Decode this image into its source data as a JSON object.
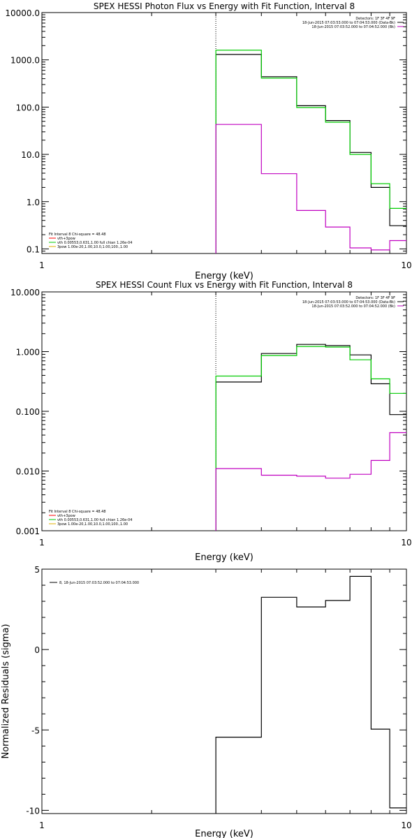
{
  "chart_data": [
    {
      "type": "line",
      "subtype": "step",
      "title": "SPEX HESSI Photon Flux vs Energy with Fit Function, Interval 8",
      "xlabel": "Energy (keV)",
      "ylabel": "",
      "xscale": "log",
      "yscale": "log",
      "xlim": [
        1,
        10
      ],
      "ylim": [
        0.08,
        10000
      ],
      "x_ticks": [
        {
          "value": 1,
          "label": "1"
        },
        {
          "value": 10,
          "label": "10"
        }
      ],
      "y_ticks": [
        {
          "value": 10000,
          "label": "10000.0"
        },
        {
          "value": 1000,
          "label": "1000.0"
        },
        {
          "value": 100,
          "label": "100.0"
        },
        {
          "value": 10,
          "label": "10.0"
        },
        {
          "value": 1,
          "label": "1.0"
        },
        {
          "value": 0.1,
          "label": "0.1"
        }
      ],
      "vline_x": 3.0,
      "legend_top_right": [
        {
          "text": "Detectors: 1F 3F 4F 9F",
          "color": null
        },
        {
          "text": "18-Jun-2015 07:03:53.000 to 07:04:53.000 (Data-Bk)",
          "color": "#000000"
        },
        {
          "text": "18-Jun-2015 07:03:52.000 to 07:04:52.000 (Bk)",
          "color": "#c000c0"
        }
      ],
      "legend_bottom_left": [
        {
          "text": "Fit Interval 8   Chi-square = 48.48",
          "color": null
        },
        {
          "text": "vth+3pow",
          "color": "#ff0000"
        },
        {
          "text": "vth 0.00553,0.631,1.00  full chian 1.26e-04",
          "color": "#00cc00"
        },
        {
          "text": "3pow 1.00e-20,1.00,10.0,1.00,100.,1.00",
          "color": "#e0b000"
        }
      ],
      "bin_edges": [
        3.0,
        4.0,
        5.0,
        6.0,
        7.0,
        8.0,
        9.0,
        10.0
      ],
      "series": [
        {
          "role": "data-bk",
          "color": "#000000",
          "values": [
            1300,
            440,
            107,
            52,
            11,
            2.0,
            0.31
          ]
        },
        {
          "role": "fit",
          "color": "#00cc00",
          "values": [
            1600,
            410,
            98,
            48,
            10,
            2.4,
            0.72
          ]
        },
        {
          "role": "bk",
          "color": "#c000c0",
          "values": [
            43,
            3.9,
            0.65,
            0.29,
            0.105,
            0.095,
            0.15
          ]
        }
      ]
    },
    {
      "type": "line",
      "subtype": "step",
      "title": "SPEX HESSI Count Flux vs Energy with Fit Function, Interval 8",
      "xlabel": "Energy (keV)",
      "ylabel": "",
      "xscale": "log",
      "yscale": "log",
      "xlim": [
        1,
        10
      ],
      "ylim": [
        0.001,
        10
      ],
      "x_ticks": [
        {
          "value": 1,
          "label": "1"
        },
        {
          "value": 10,
          "label": "10"
        }
      ],
      "y_ticks": [
        {
          "value": 10,
          "label": "10.000"
        },
        {
          "value": 1,
          "label": "1.000"
        },
        {
          "value": 0.1,
          "label": "0.100"
        },
        {
          "value": 0.01,
          "label": "0.010"
        },
        {
          "value": 0.001,
          "label": "0.001"
        }
      ],
      "vline_x": 3.0,
      "legend_top_right": [
        {
          "text": "Detectors: 1F 3F 4F 9F",
          "color": null
        },
        {
          "text": "18-Jun-2015 07:03:53.000 to 07:04:53.000 (Data-Bk)",
          "color": "#000000"
        },
        {
          "text": "18-Jun-2015 07:03:52.000 to 07:04:52.000 (Bk)",
          "color": "#c000c0"
        }
      ],
      "legend_bottom_left": [
        {
          "text": "Fit Interval 8   Chi-square = 48.48",
          "color": null
        },
        {
          "text": "vth+3pow",
          "color": "#ff0000"
        },
        {
          "text": "vth 0.00553,0.631,1.00  full chian 1.26e-04",
          "color": "#00cc00"
        },
        {
          "text": "3pow 1.00e-20,1.00,10.0,1.00,100.,1.00",
          "color": "#e0b000"
        }
      ],
      "bin_edges": [
        3.0,
        4.0,
        5.0,
        6.0,
        7.0,
        8.0,
        9.0,
        10.0
      ],
      "series": [
        {
          "role": "data-bk",
          "color": "#000000",
          "values": [
            0.31,
            0.93,
            1.32,
            1.26,
            0.88,
            0.29,
            0.088
          ]
        },
        {
          "role": "fit",
          "color": "#00cc00",
          "values": [
            0.39,
            0.86,
            1.22,
            1.19,
            0.73,
            0.35,
            0.2
          ]
        },
        {
          "role": "bk",
          "color": "#c000c0",
          "values": [
            0.011,
            0.0085,
            0.0082,
            0.0076,
            0.0088,
            0.015,
            0.044
          ]
        }
      ]
    },
    {
      "type": "line",
      "subtype": "step",
      "title": "",
      "xlabel": "Energy (keV)",
      "ylabel": "Normalized Residuals (sigma)",
      "xscale": "log",
      "yscale": "linear",
      "xlim": [
        1,
        10
      ],
      "ylim": [
        -10.2,
        5
      ],
      "x_ticks": [
        {
          "value": 1,
          "label": "1"
        },
        {
          "value": 10,
          "label": "10"
        }
      ],
      "y_ticks": [
        {
          "value": 5,
          "label": "5"
        },
        {
          "value": 0,
          "label": "0"
        },
        {
          "value": -5,
          "label": "-5"
        },
        {
          "value": -10,
          "label": "-10"
        }
      ],
      "legend_top_left": [
        {
          "text": "8, 18-Jun-2015 07:03:52.000 to 07:04:53.000",
          "color": "#000000"
        }
      ],
      "bin_edges": [
        3.0,
        4.0,
        5.0,
        6.0,
        7.0,
        8.0,
        9.0,
        10.0
      ],
      "series": [
        {
          "role": "residuals",
          "color": "#000000",
          "values": [
            -5.45,
            3.25,
            2.65,
            3.05,
            4.55,
            -4.95,
            -9.85
          ]
        }
      ]
    }
  ]
}
